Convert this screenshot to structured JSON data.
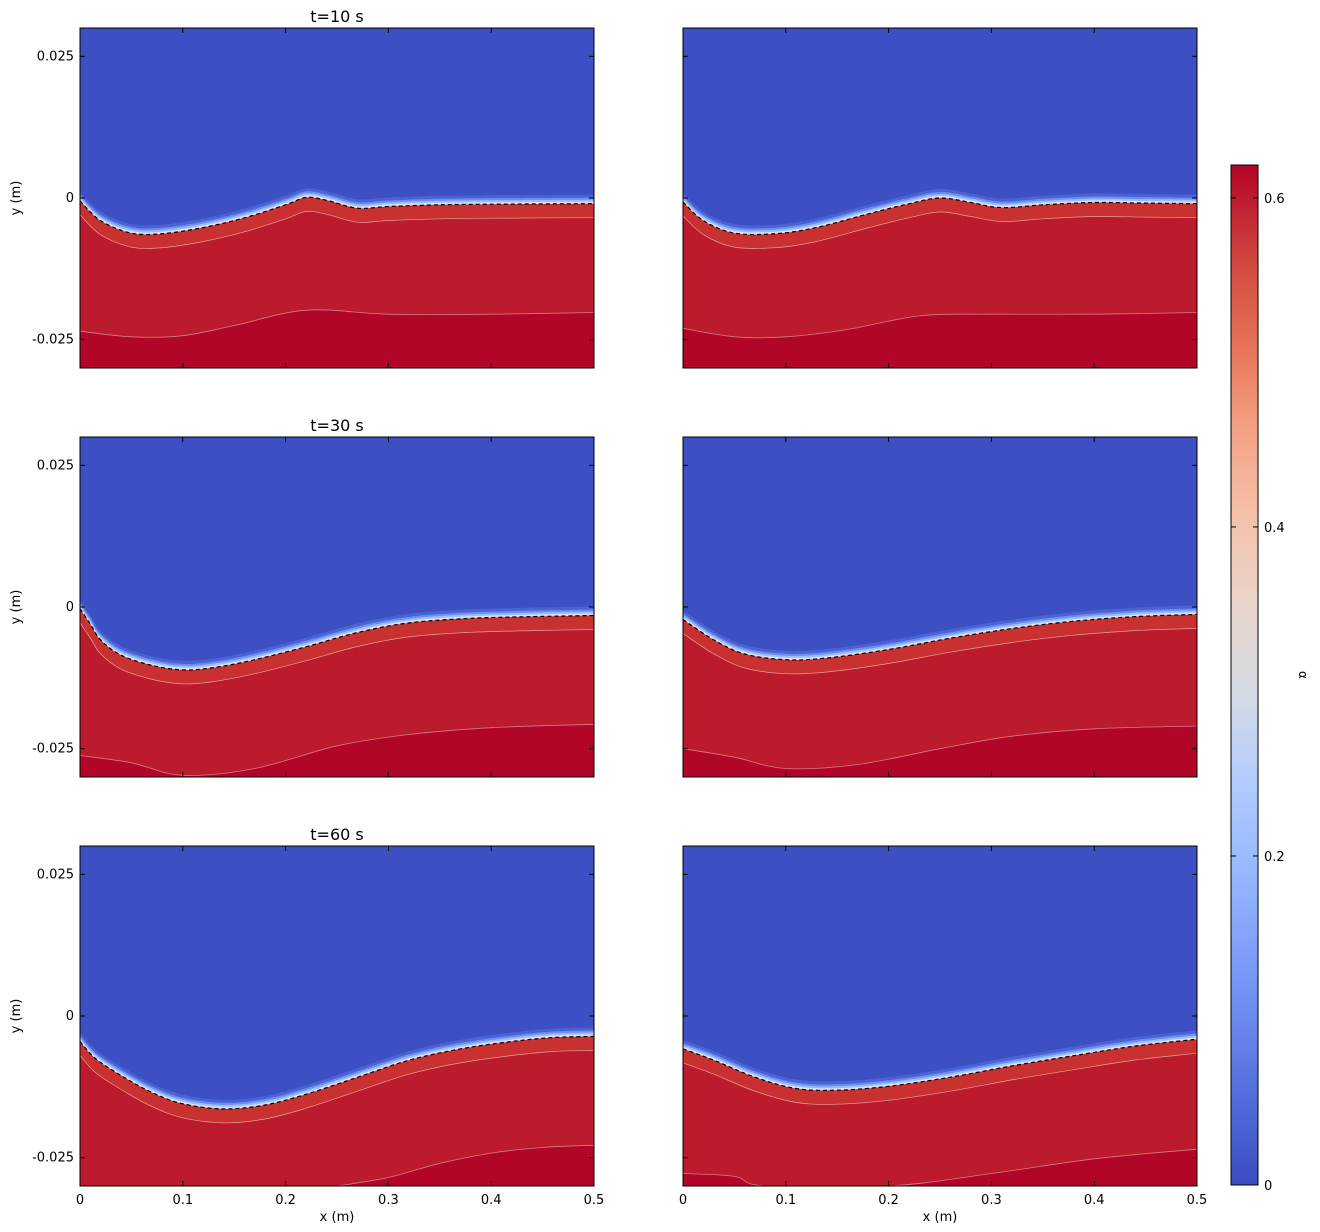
{
  "chart_data": {
    "type": "heatmap",
    "layout": "3 rows x 2 columns, shared axes, single colorbar on the right",
    "xlabel": "x (m)",
    "ylabel": "y (m)",
    "xlim": [
      0,
      0.5
    ],
    "ylim": [
      -0.03,
      0.03
    ],
    "x_ticks": [
      "0",
      "0.1",
      "0.2",
      "0.3",
      "0.4",
      "0.5"
    ],
    "y_ticks": [
      "0.025",
      "0",
      "-0.025"
    ],
    "colorbar": {
      "label": "α",
      "range": [
        0,
        0.62
      ],
      "ticks": [
        "0",
        "0.2",
        "0.4",
        "0.6"
      ],
      "colormap": "coolwarm",
      "low_color": "#3b4cc0",
      "high_color": "#b40426"
    },
    "interface_line": "dashed black contour",
    "panels": [
      {
        "row": 0,
        "col": 0,
        "title": "t=10 s",
        "interface": [
          [
            0.0,
            -0.0005
          ],
          [
            0.02,
            -0.004
          ],
          [
            0.05,
            -0.0062
          ],
          [
            0.08,
            -0.0063
          ],
          [
            0.12,
            -0.0052
          ],
          [
            0.16,
            -0.0035
          ],
          [
            0.2,
            -0.0012
          ],
          [
            0.22,
            0.0001
          ],
          [
            0.24,
            -0.0004
          ],
          [
            0.27,
            -0.0018
          ],
          [
            0.3,
            -0.0015
          ],
          [
            0.35,
            -0.0012
          ],
          [
            0.4,
            -0.0011
          ],
          [
            0.5,
            -0.001
          ]
        ],
        "lower_contour": [
          [
            0.0,
            -0.0235
          ],
          [
            0.05,
            -0.0245
          ],
          [
            0.1,
            -0.0243
          ],
          [
            0.15,
            -0.0225
          ],
          [
            0.22,
            -0.0198
          ],
          [
            0.3,
            -0.0205
          ],
          [
            0.4,
            -0.0205
          ],
          [
            0.5,
            -0.0202
          ]
        ]
      },
      {
        "row": 0,
        "col": 1,
        "title": "",
        "interface": [
          [
            0.0,
            -0.0007
          ],
          [
            0.02,
            -0.004
          ],
          [
            0.05,
            -0.0062
          ],
          [
            0.09,
            -0.0063
          ],
          [
            0.13,
            -0.0052
          ],
          [
            0.18,
            -0.0028
          ],
          [
            0.22,
            -0.001
          ],
          [
            0.25,
            0.0
          ],
          [
            0.28,
            -0.0008
          ],
          [
            0.31,
            -0.0017
          ],
          [
            0.35,
            -0.0012
          ],
          [
            0.4,
            -0.0008
          ],
          [
            0.45,
            -0.0009
          ],
          [
            0.5,
            -0.001
          ]
        ],
        "lower_contour": [
          [
            0.0,
            -0.023
          ],
          [
            0.05,
            -0.0245
          ],
          [
            0.1,
            -0.0245
          ],
          [
            0.16,
            -0.0232
          ],
          [
            0.23,
            -0.0208
          ],
          [
            0.3,
            -0.0205
          ],
          [
            0.4,
            -0.0205
          ],
          [
            0.5,
            -0.0202
          ]
        ]
      },
      {
        "row": 1,
        "col": 0,
        "title": "t=30 s",
        "interface": [
          [
            0.0,
            -0.0003
          ],
          [
            0.01,
            -0.003
          ],
          [
            0.02,
            -0.0058
          ],
          [
            0.04,
            -0.0085
          ],
          [
            0.07,
            -0.0103
          ],
          [
            0.1,
            -0.0111
          ],
          [
            0.13,
            -0.0107
          ],
          [
            0.17,
            -0.0093
          ],
          [
            0.22,
            -0.007
          ],
          [
            0.27,
            -0.0045
          ],
          [
            0.32,
            -0.0028
          ],
          [
            0.38,
            -0.002
          ],
          [
            0.44,
            -0.0017
          ],
          [
            0.5,
            -0.0015
          ]
        ],
        "lower_contour": [
          [
            0.0,
            -0.0262
          ],
          [
            0.05,
            -0.0275
          ],
          [
            0.1,
            -0.0297
          ],
          [
            0.17,
            -0.0285
          ],
          [
            0.25,
            -0.0245
          ],
          [
            0.32,
            -0.0225
          ],
          [
            0.4,
            -0.0213
          ],
          [
            0.5,
            -0.0207
          ]
        ]
      },
      {
        "row": 1,
        "col": 1,
        "title": "",
        "interface": [
          [
            0.0,
            -0.0022
          ],
          [
            0.03,
            -0.0058
          ],
          [
            0.06,
            -0.0083
          ],
          [
            0.1,
            -0.0093
          ],
          [
            0.14,
            -0.009
          ],
          [
            0.2,
            -0.0075
          ],
          [
            0.26,
            -0.0055
          ],
          [
            0.32,
            -0.0038
          ],
          [
            0.38,
            -0.0025
          ],
          [
            0.44,
            -0.0017
          ],
          [
            0.5,
            -0.0013
          ]
        ],
        "lower_contour": [
          [
            0.0,
            -0.025
          ],
          [
            0.05,
            -0.0265
          ],
          [
            0.1,
            -0.0285
          ],
          [
            0.17,
            -0.0278
          ],
          [
            0.25,
            -0.025
          ],
          [
            0.32,
            -0.0228
          ],
          [
            0.4,
            -0.0215
          ],
          [
            0.5,
            -0.021
          ]
        ]
      },
      {
        "row": 2,
        "col": 0,
        "title": "t=60 s",
        "interface": [
          [
            0.0,
            -0.0045
          ],
          [
            0.015,
            -0.0075
          ],
          [
            0.04,
            -0.0105
          ],
          [
            0.07,
            -0.0135
          ],
          [
            0.1,
            -0.0155
          ],
          [
            0.14,
            -0.0164
          ],
          [
            0.18,
            -0.0157
          ],
          [
            0.22,
            -0.0138
          ],
          [
            0.27,
            -0.0108
          ],
          [
            0.32,
            -0.0078
          ],
          [
            0.37,
            -0.0058
          ],
          [
            0.42,
            -0.0045
          ],
          [
            0.46,
            -0.0038
          ],
          [
            0.5,
            -0.0036
          ]
        ],
        "lower_contour": [
          [
            0.25,
            -0.03
          ],
          [
            0.3,
            -0.0285
          ],
          [
            0.35,
            -0.026
          ],
          [
            0.4,
            -0.0242
          ],
          [
            0.45,
            -0.0232
          ],
          [
            0.5,
            -0.0228
          ]
        ]
      },
      {
        "row": 2,
        "col": 1,
        "title": "",
        "interface": [
          [
            0.0,
            -0.0058
          ],
          [
            0.03,
            -0.0078
          ],
          [
            0.07,
            -0.0108
          ],
          [
            0.11,
            -0.0128
          ],
          [
            0.15,
            -0.0131
          ],
          [
            0.2,
            -0.0124
          ],
          [
            0.26,
            -0.0108
          ],
          [
            0.32,
            -0.0088
          ],
          [
            0.38,
            -0.007
          ],
          [
            0.44,
            -0.0053
          ],
          [
            0.5,
            -0.0041
          ]
        ],
        "lower_contour": [
          [
            0.0,
            -0.0278
          ],
          [
            0.05,
            -0.0283
          ],
          [
            0.08,
            -0.03
          ],
          [
            0.2,
            -0.03
          ],
          [
            0.3,
            -0.0278
          ],
          [
            0.4,
            -0.0252
          ],
          [
            0.5,
            -0.0235
          ]
        ]
      }
    ]
  }
}
